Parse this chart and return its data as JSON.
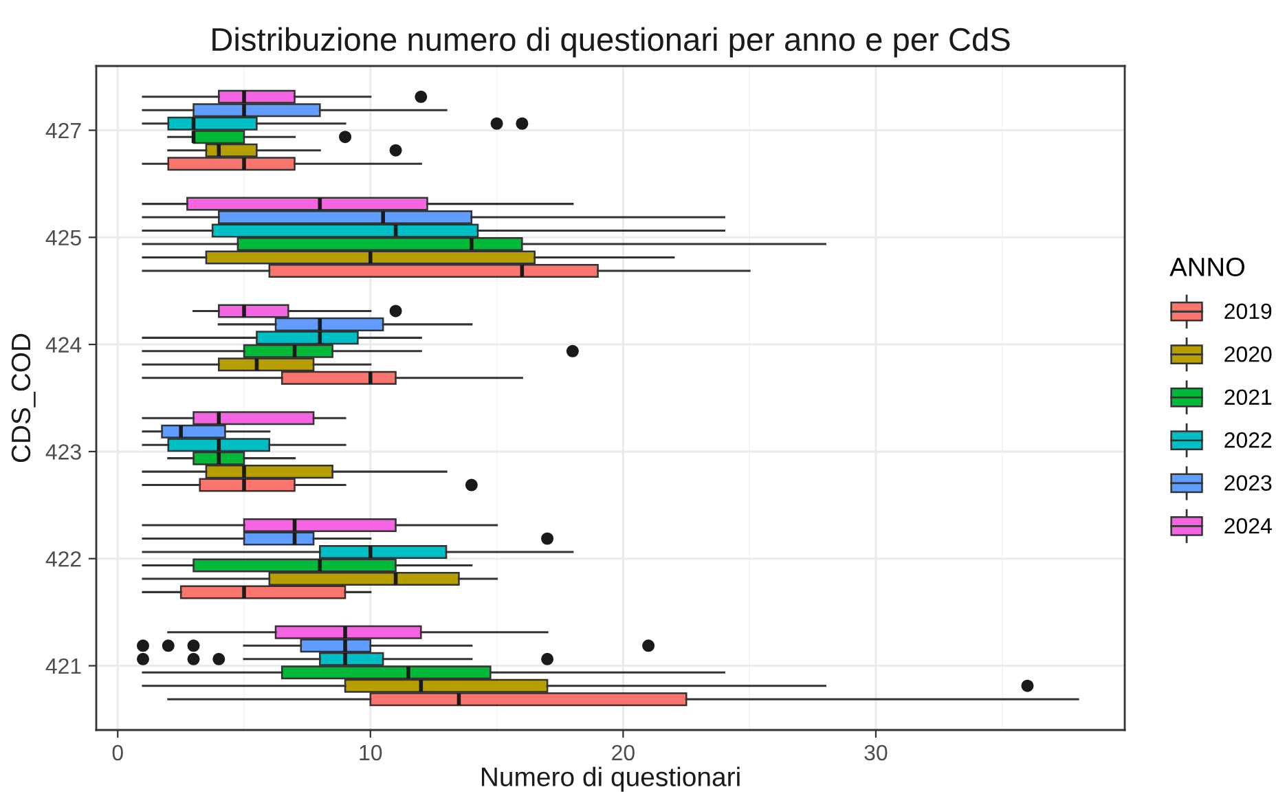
{
  "chart_data": {
    "type": "box",
    "orientation": "horizontal",
    "title": "Distribuzione numero di questionari per anno e per CdS",
    "xlabel": "Numero di questionari",
    "ylabel": "CDS_COD",
    "legend_title": "ANNO",
    "categories": [
      "427",
      "425",
      "424",
      "423",
      "422",
      "421"
    ],
    "xlim": [
      -0.85,
      39.85
    ],
    "xticks": [
      0,
      10,
      20,
      30
    ],
    "grid": true,
    "legend": "right",
    "series": [
      {
        "name": "2019",
        "color": "#f8766d",
        "boxes": [
          {
            "low": 1,
            "q1": 2,
            "median": 5,
            "q3": 7,
            "high": 12
          },
          {
            "low": 1,
            "q1": 6,
            "median": 16,
            "q3": 19,
            "high": 25
          },
          {
            "low": 1,
            "q1": 6.5,
            "median": 10,
            "q3": 11,
            "high": 16
          },
          {
            "low": 1,
            "q1": 3.25,
            "median": 5,
            "q3": 7,
            "high": 9,
            "outliers": [
              14
            ]
          },
          {
            "low": 1,
            "q1": 2.5,
            "median": 5,
            "q3": 9,
            "high": 10
          },
          {
            "low": 2,
            "q1": 10,
            "median": 13.5,
            "q3": 22.5,
            "high": 38
          }
        ]
      },
      {
        "name": "2020",
        "color": "#b79f00",
        "boxes": [
          {
            "low": 2,
            "q1": 3.5,
            "median": 4,
            "q3": 5.5,
            "high": 8,
            "outliers": [
              11
            ]
          },
          {
            "low": 1,
            "q1": 3.5,
            "median": 10,
            "q3": 16.5,
            "high": 22
          },
          {
            "low": 1,
            "q1": 4,
            "median": 5.5,
            "q3": 7.75,
            "high": 10
          },
          {
            "low": 1,
            "q1": 3.5,
            "median": 5,
            "q3": 8.5,
            "high": 13
          },
          {
            "low": 1,
            "q1": 6,
            "median": 11,
            "q3": 13.5,
            "high": 15
          },
          {
            "low": 1,
            "q1": 9,
            "median": 12,
            "q3": 17,
            "high": 28,
            "outliers": [
              36
            ]
          }
        ]
      },
      {
        "name": "2021",
        "color": "#00ba38",
        "boxes": [
          {
            "low": 2,
            "q1": 3,
            "median": 3,
            "q3": 5,
            "high": 7,
            "outliers": [
              9
            ]
          },
          {
            "low": 1,
            "q1": 4.75,
            "median": 14,
            "q3": 16,
            "high": 28
          },
          {
            "low": 1,
            "q1": 5,
            "median": 7,
            "q3": 8.5,
            "high": 12,
            "outliers": [
              18
            ]
          },
          {
            "low": 2,
            "q1": 3,
            "median": 4,
            "q3": 5,
            "high": 7
          },
          {
            "low": 1,
            "q1": 3,
            "median": 8,
            "q3": 11,
            "high": 14
          },
          {
            "low": 1,
            "q1": 6.5,
            "median": 11.5,
            "q3": 14.75,
            "high": 24
          }
        ]
      },
      {
        "name": "2022",
        "color": "#00bfc4",
        "boxes": [
          {
            "low": 1,
            "q1": 2,
            "median": 3,
            "q3": 5.5,
            "high": 9,
            "outliers": [
              15,
              16
            ]
          },
          {
            "low": 1,
            "q1": 3.75,
            "median": 11,
            "q3": 14.25,
            "high": 24
          },
          {
            "low": 1,
            "q1": 5.5,
            "median": 8,
            "q3": 9.5,
            "high": 12
          },
          {
            "low": 1,
            "q1": 2,
            "median": 4,
            "q3": 6,
            "high": 9
          },
          {
            "low": 1,
            "q1": 8,
            "median": 10,
            "q3": 13,
            "high": 18
          },
          {
            "low": 5,
            "q1": 8,
            "median": 9,
            "q3": 10.5,
            "high": 14,
            "outliers": [
              1,
              3,
              4,
              17
            ]
          }
        ]
      },
      {
        "name": "2023",
        "color": "#619cff",
        "boxes": [
          {
            "low": 1,
            "q1": 3,
            "median": 5,
            "q3": 8,
            "high": 13
          },
          {
            "low": 1,
            "q1": 4,
            "median": 10.5,
            "q3": 14,
            "high": 24
          },
          {
            "low": 4,
            "q1": 6.25,
            "median": 8,
            "q3": 10.5,
            "high": 14
          },
          {
            "low": 1,
            "q1": 1.75,
            "median": 2.5,
            "q3": 4.25,
            "high": 6
          },
          {
            "low": 1,
            "q1": 5,
            "median": 7,
            "q3": 7.75,
            "high": 10,
            "outliers": [
              17
            ]
          },
          {
            "low": 5,
            "q1": 7.25,
            "median": 9,
            "q3": 10,
            "high": 14,
            "outliers": [
              1,
              2,
              3,
              21
            ]
          }
        ]
      },
      {
        "name": "2024",
        "color": "#f564e3",
        "boxes": [
          {
            "low": 1,
            "q1": 4,
            "median": 5,
            "q3": 7,
            "high": 10,
            "outliers": [
              12
            ]
          },
          {
            "low": 1,
            "q1": 2.75,
            "median": 8,
            "q3": 12.25,
            "high": 18
          },
          {
            "low": 3,
            "q1": 4,
            "median": 5,
            "q3": 6.75,
            "high": 10,
            "outliers": [
              11
            ]
          },
          {
            "low": 1,
            "q1": 3,
            "median": 4,
            "q3": 7.75,
            "high": 9
          },
          {
            "low": 1,
            "q1": 5,
            "median": 7,
            "q3": 11,
            "high": 15
          },
          {
            "low": 2,
            "q1": 6.25,
            "median": 9,
            "q3": 12,
            "high": 17
          }
        ]
      }
    ]
  }
}
